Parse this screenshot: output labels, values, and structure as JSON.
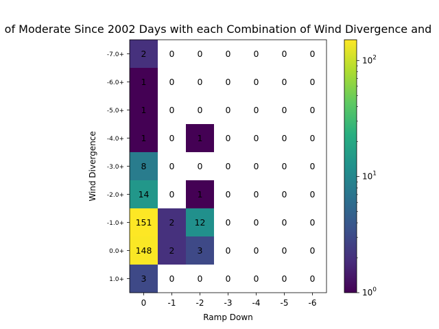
{
  "chart_data": {
    "type": "heatmap",
    "title": "of Moderate Since 2002 Days with each Combination of Wind Divergence and",
    "xlabel": "Ramp Down",
    "ylabel": "Wind Divergence",
    "x_categories": [
      "0",
      "-1",
      "-2",
      "-3",
      "-4",
      "-5",
      "-6"
    ],
    "y_categories": [
      "-7.0+",
      "-6.0+",
      "-5.0+",
      "-4.0+",
      "-3.0+",
      "-2.0+",
      "-1.0+",
      "0.0+",
      "1.0+"
    ],
    "values": [
      [
        2,
        0,
        0,
        0,
        0,
        0,
        0
      ],
      [
        1,
        0,
        0,
        0,
        0,
        0,
        0
      ],
      [
        1,
        0,
        0,
        0,
        0,
        0,
        0
      ],
      [
        1,
        0,
        1,
        0,
        0,
        0,
        0
      ],
      [
        8,
        0,
        0,
        0,
        0,
        0,
        0
      ],
      [
        14,
        0,
        1,
        0,
        0,
        0,
        0
      ],
      [
        151,
        2,
        12,
        0,
        0,
        0,
        0
      ],
      [
        148,
        2,
        3,
        0,
        0,
        0,
        0
      ],
      [
        3,
        0,
        0,
        0,
        0,
        0,
        0
      ]
    ],
    "colorbar": {
      "scale": "log",
      "range": [
        1,
        151
      ],
      "colormap": "viridis",
      "tick_labels": [
        "10^0",
        "10^1",
        "10^2"
      ]
    },
    "zero_cells_color": "#ffffff",
    "grid": false
  }
}
